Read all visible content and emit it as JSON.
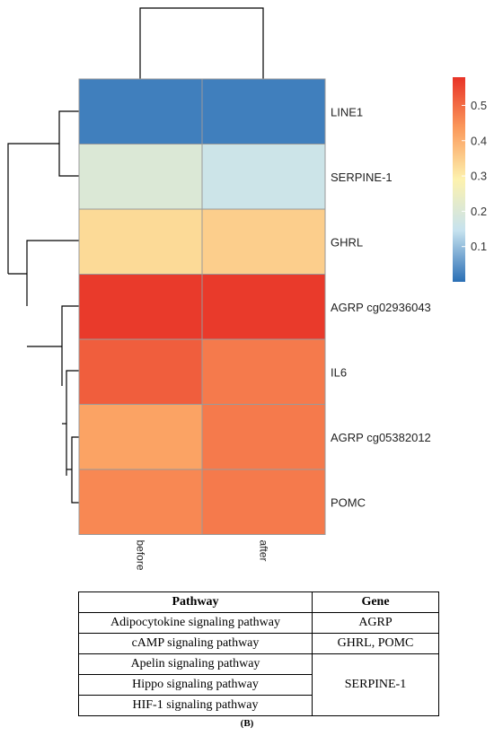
{
  "chart_data": {
    "type": "heatmap",
    "columns": [
      "before",
      "after"
    ],
    "rows": [
      "LINE1",
      "SERPINE-1",
      "GHRL",
      "AGRP cg02936043",
      "IL6",
      "AGRP cg05382012",
      "POMC"
    ],
    "values": [
      [
        0.02,
        0.02
      ],
      [
        0.2,
        0.16
      ],
      [
        0.33,
        0.35
      ],
      [
        0.57,
        0.57
      ],
      [
        0.52,
        0.48
      ],
      [
        0.42,
        0.48
      ],
      [
        0.46,
        0.48
      ]
    ],
    "colorbar": {
      "range": [
        0.0,
        0.58
      ],
      "ticks": [
        "0.1",
        "0.2",
        "0.3",
        "0.4",
        "0.5"
      ],
      "tick_values": [
        0.1,
        0.2,
        0.3,
        0.4,
        0.5
      ],
      "colors": [
        "#2a6fb5",
        "#c6e2ef",
        "#fdf2ae",
        "#fb9a5c",
        "#e83327"
      ]
    },
    "dendrogram": {
      "columns": "before and after joined",
      "rows": "(((LINE1, SERPINE-1), (GHRL, (AGRP cg02936043, (IL6, (AGRP cg05382012, POMC))))))"
    },
    "grid": false,
    "legend_position": "top-right"
  },
  "table": {
    "headers": [
      "Pathway",
      "Gene"
    ],
    "rows": [
      {
        "pathway": "Adipocytokine signaling pathway",
        "gene": "AGRP"
      },
      {
        "pathway": "cAMP signaling pathway",
        "gene": "GHRL, POMC"
      },
      {
        "pathway": "Apelin signaling pathway",
        "gene": "SERPINE-1"
      },
      {
        "pathway": "Hippo signaling pathway",
        "gene": ""
      },
      {
        "pathway": "HIF-1 signaling pathway",
        "gene": ""
      }
    ]
  },
  "panel_label": "(B)"
}
